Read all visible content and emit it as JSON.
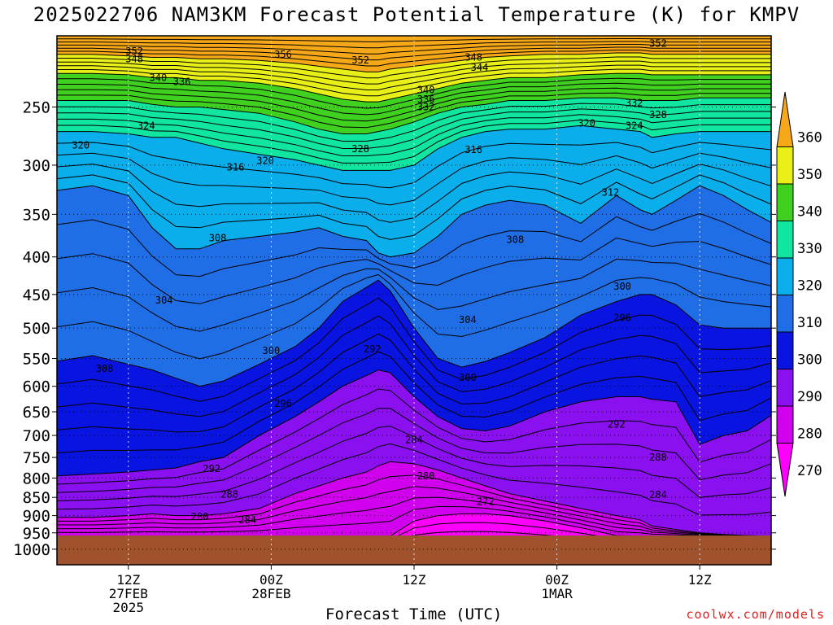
{
  "title": "2025022706 NAM3KM Forecast Potential Temperature (K) for KMPV",
  "credit": "coolwx.com/models",
  "chart_data": {
    "type": "heatmap",
    "title": "2025022706 NAM3KM Forecast Potential Temperature (K) for KMPV",
    "xlabel": "Forecast Time (UTC)",
    "ylabel": "",
    "xlim": [
      0,
      60
    ],
    "ylim": [
      1050,
      200
    ],
    "y_scale": "log-pressure",
    "grid": true,
    "y_ticks": [
      1000,
      950,
      900,
      850,
      800,
      750,
      700,
      650,
      600,
      550,
      500,
      450,
      400,
      350,
      300,
      250
    ],
    "x_ticks": [
      {
        "t": 6,
        "lines": [
          "12Z",
          "27FEB",
          "2025"
        ]
      },
      {
        "t": 18,
        "lines": [
          "00Z",
          "28FEB"
        ]
      },
      {
        "t": 30,
        "lines": [
          "12Z"
        ]
      },
      {
        "t": 42,
        "lines": [
          "00Z",
          "1MAR"
        ]
      },
      {
        "t": 54,
        "lines": [
          "12Z"
        ]
      }
    ],
    "colorbar": {
      "ticks": [
        270,
        280,
        290,
        300,
        310,
        320,
        330,
        340,
        350,
        360
      ],
      "bins": [
        {
          "from": 260,
          "to": 270,
          "color": "#ff00ff"
        },
        {
          "from": 270,
          "to": 280,
          "color": "#d000ee"
        },
        {
          "from": 280,
          "to": 290,
          "color": "#8a10f0"
        },
        {
          "from": 290,
          "to": 300,
          "color": "#0a14e0"
        },
        {
          "from": 300,
          "to": 310,
          "color": "#1f6ee6"
        },
        {
          "from": 310,
          "to": 320,
          "color": "#0aaeea"
        },
        {
          "from": 320,
          "to": 330,
          "color": "#10e6a0"
        },
        {
          "from": 330,
          "to": 340,
          "color": "#40d020"
        },
        {
          "from": 340,
          "to": 350,
          "color": "#e8f018"
        },
        {
          "from": 350,
          "to": 360,
          "color": "#f6a818"
        }
      ]
    },
    "terrain": {
      "top_hPa": 958,
      "color": "#a0522d"
    },
    "times": [
      0,
      3,
      6,
      8,
      10,
      12,
      14,
      17,
      20,
      22,
      24,
      26,
      27,
      28,
      30,
      32,
      34,
      36,
      38,
      41,
      44,
      47,
      49,
      50,
      52,
      54,
      56,
      58,
      60
    ],
    "boundary_levels": [
      {
        "theta": 270,
        "p": [
          960,
          960,
          960,
          960,
          960,
          960,
          960,
          960,
          960,
          960,
          960,
          960,
          960,
          960,
          915,
          900,
          895,
          895,
          900,
          915,
          935,
          958,
          960,
          960,
          960,
          960,
          960,
          960,
          960
        ]
      },
      {
        "theta": 280,
        "p": [
          905,
          905,
          900,
          895,
          900,
          900,
          895,
          880,
          840,
          820,
          800,
          785,
          770,
          760,
          765,
          780,
          800,
          820,
          840,
          860,
          880,
          900,
          912,
          930,
          940,
          950,
          955,
          958,
          960
        ]
      },
      {
        "theta": 290,
        "p": [
          795,
          790,
          785,
          780,
          775,
          760,
          750,
          700,
          660,
          630,
          600,
          580,
          570,
          575,
          620,
          660,
          685,
          690,
          680,
          650,
          630,
          620,
          620,
          625,
          630,
          720,
          700,
          690,
          655
        ]
      },
      {
        "theta": 300,
        "p": [
          555,
          545,
          560,
          570,
          585,
          600,
          590,
          560,
          530,
          500,
          460,
          440,
          430,
          445,
          500,
          550,
          565,
          555,
          540,
          515,
          480,
          460,
          450,
          450,
          465,
          495,
          500,
          500,
          500
        ]
      },
      {
        "theta": 310,
        "p": [
          325,
          320,
          330,
          365,
          390,
          390,
          380,
          375,
          370,
          365,
          375,
          380,
          395,
          400,
          395,
          375,
          350,
          340,
          335,
          340,
          360,
          330,
          345,
          350,
          335,
          320,
          330,
          345,
          360
        ]
      },
      {
        "theta": 320,
        "p": [
          270,
          270,
          272,
          275,
          275,
          280,
          285,
          290,
          295,
          300,
          305,
          305,
          305,
          305,
          300,
          285,
          275,
          270,
          268,
          268,
          265,
          268,
          270,
          275,
          272,
          270,
          270,
          270,
          270
        ]
      },
      {
        "theta": 330,
        "p": [
          245,
          245,
          245,
          248,
          250,
          250,
          252,
          255,
          262,
          268,
          272,
          272,
          270,
          268,
          262,
          255,
          250,
          248,
          245,
          245,
          243,
          243,
          245,
          245,
          245,
          243,
          243,
          243,
          243
        ]
      },
      {
        "theta": 340,
        "p": [
          225,
          225,
          226,
          228,
          228,
          230,
          230,
          232,
          236,
          240,
          244,
          246,
          246,
          244,
          240,
          236,
          232,
          230,
          228,
          228,
          226,
          225,
          225,
          226,
          226,
          226,
          226,
          226,
          226
        ]
      },
      {
        "theta": 350,
        "p": [
          212,
          212,
          213,
          214,
          214,
          215,
          215,
          216,
          218,
          220,
          222,
          224,
          224,
          222,
          220,
          218,
          216,
          214,
          213,
          212,
          212,
          211,
          211,
          212,
          212,
          212,
          212,
          212,
          212
        ]
      }
    ],
    "contour_labels": [
      {
        "text": "352",
        "t": 6.5,
        "p": 210
      },
      {
        "text": "348",
        "t": 6.5,
        "p": 215
      },
      {
        "text": "356",
        "t": 19,
        "p": 212
      },
      {
        "text": "352",
        "t": 25.5,
        "p": 216
      },
      {
        "text": "348",
        "t": 35,
        "p": 214
      },
      {
        "text": "344",
        "t": 35.5,
        "p": 221
      },
      {
        "text": "352",
        "t": 50.5,
        "p": 205
      },
      {
        "text": "340",
        "t": 8.5,
        "p": 228
      },
      {
        "text": "336",
        "t": 10.5,
        "p": 231
      },
      {
        "text": "340",
        "t": 31,
        "p": 237
      },
      {
        "text": "336",
        "t": 31,
        "p": 244
      },
      {
        "text": "332",
        "t": 31,
        "p": 250
      },
      {
        "text": "332",
        "t": 48.5,
        "p": 247
      },
      {
        "text": "328",
        "t": 50.5,
        "p": 256
      },
      {
        "text": "324",
        "t": 7.5,
        "p": 265
      },
      {
        "text": "320",
        "t": 2,
        "p": 282
      },
      {
        "text": "320",
        "t": 17.5,
        "p": 296
      },
      {
        "text": "316",
        "t": 15,
        "p": 302
      },
      {
        "text": "328",
        "t": 25.5,
        "p": 285
      },
      {
        "text": "316",
        "t": 35,
        "p": 286
      },
      {
        "text": "320",
        "t": 44.5,
        "p": 263
      },
      {
        "text": "324",
        "t": 48.5,
        "p": 265
      },
      {
        "text": "312",
        "t": 46.5,
        "p": 327
      },
      {
        "text": "308",
        "t": 13.5,
        "p": 377
      },
      {
        "text": "308",
        "t": 38.5,
        "p": 379
      },
      {
        "text": "304",
        "t": 9,
        "p": 458
      },
      {
        "text": "300",
        "t": 18,
        "p": 537
      },
      {
        "text": "300",
        "t": 47.5,
        "p": 439
      },
      {
        "text": "304",
        "t": 34.5,
        "p": 487
      },
      {
        "text": "296",
        "t": 47.5,
        "p": 484
      },
      {
        "text": "308",
        "t": 4,
        "p": 568
      },
      {
        "text": "292",
        "t": 26.5,
        "p": 534
      },
      {
        "text": "300",
        "t": 34.5,
        "p": 584
      },
      {
        "text": "296",
        "t": 19,
        "p": 634
      },
      {
        "text": "292",
        "t": 47,
        "p": 676
      },
      {
        "text": "284",
        "t": 30,
        "p": 710
      },
      {
        "text": "288",
        "t": 50.5,
        "p": 750
      },
      {
        "text": "292",
        "t": 13,
        "p": 777
      },
      {
        "text": "280",
        "t": 31,
        "p": 795
      },
      {
        "text": "288",
        "t": 14.5,
        "p": 842
      },
      {
        "text": "284",
        "t": 50.5,
        "p": 843
      },
      {
        "text": "272",
        "t": 36,
        "p": 862
      },
      {
        "text": "280",
        "t": 12,
        "p": 903
      },
      {
        "text": "284",
        "t": 16,
        "p": 913
      }
    ]
  }
}
